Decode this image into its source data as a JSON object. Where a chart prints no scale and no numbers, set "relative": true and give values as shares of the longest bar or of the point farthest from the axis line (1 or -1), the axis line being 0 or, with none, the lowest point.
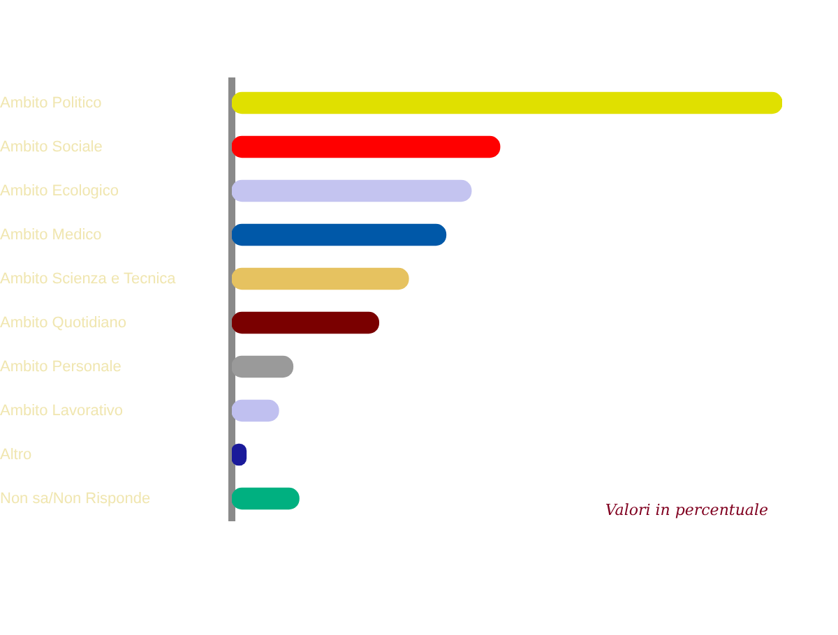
{
  "chart_data": {
    "type": "bar",
    "orientation": "horizontal",
    "relative": true,
    "grid": false,
    "legend": false,
    "categories": [
      "Ambito Politico",
      "Ambito Sociale",
      "Ambito Ecologico",
      "Ambito Medico",
      "Ambito Scienza e Tecnica",
      "Ambito Quotidiano",
      "Ambito Personale",
      "Ambito Lavorativo",
      "Altro",
      "Non sa/Non Risponde"
    ],
    "values": [
      1,
      0.487,
      0.435,
      0.389,
      0.321,
      0.267,
      0.111,
      0.085,
      0.026,
      0.122
    ],
    "colors": [
      "#e0e000",
      "#ff0000",
      "#c4c4f0",
      "#0058a8",
      "#e6c260",
      "#7a0000",
      "#9a9a9a",
      "#c0c0f0",
      "#1a1a9a",
      "#00b080"
    ],
    "annotations": [
      "Valori in percentuale"
    ]
  }
}
